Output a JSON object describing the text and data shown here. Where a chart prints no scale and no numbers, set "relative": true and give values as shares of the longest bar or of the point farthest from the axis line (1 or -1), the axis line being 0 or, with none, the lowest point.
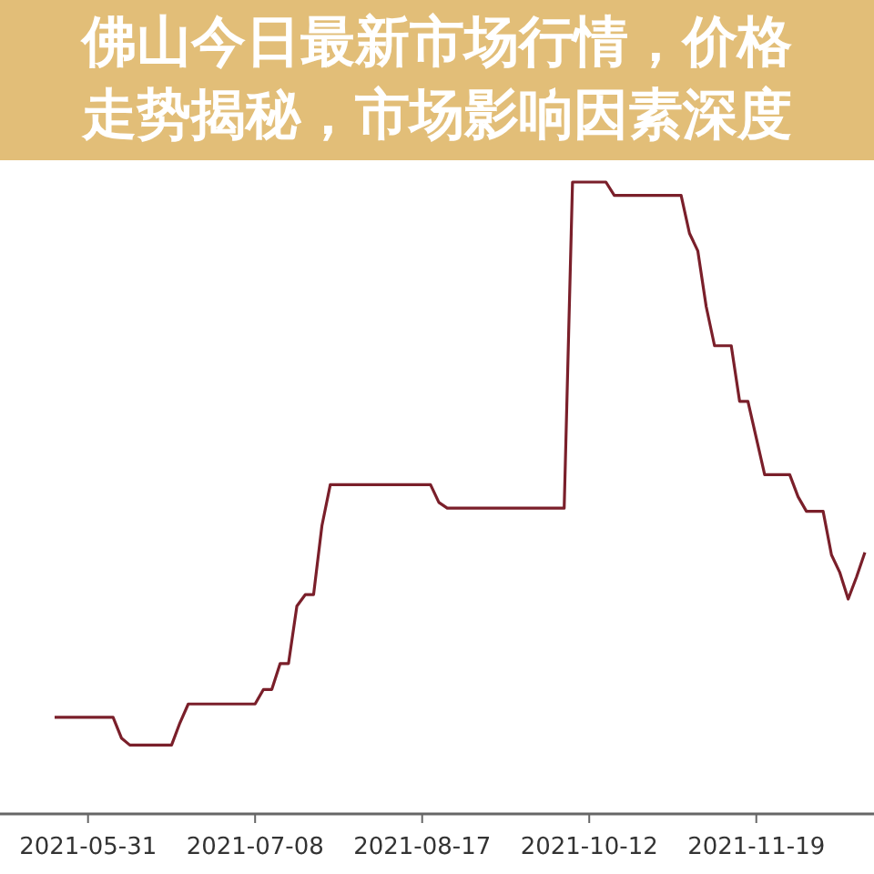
{
  "chart_data": {
    "type": "line",
    "title": "佛山今日最新市场行情，价格走势揭秘，市场影响因素深度",
    "relative": true,
    "marker": "none",
    "line_style": "solid",
    "categories": [
      null,
      null,
      null,
      null,
      "2021-05-31",
      null,
      null,
      null,
      null,
      null,
      null,
      null,
      null,
      null,
      null,
      null,
      null,
      null,
      null,
      null,
      null,
      null,
      null,
      null,
      "2021-07-08",
      null,
      null,
      null,
      null,
      null,
      null,
      null,
      null,
      null,
      null,
      null,
      null,
      null,
      null,
      null,
      null,
      null,
      null,
      null,
      "2021-08-17",
      null,
      null,
      null,
      null,
      null,
      null,
      null,
      null,
      null,
      null,
      null,
      null,
      null,
      null,
      null,
      null,
      null,
      null,
      null,
      "2021-10-12",
      null,
      null,
      null,
      null,
      null,
      null,
      null,
      null,
      null,
      null,
      null,
      null,
      null,
      null,
      null,
      null,
      null,
      null,
      null,
      "2021-11-19",
      null,
      null,
      null,
      null,
      null,
      null,
      null,
      null,
      null,
      null,
      null,
      null,
      null
    ],
    "series": [
      {
        "color": "#7a1f2a",
        "values": [
          0.153,
          0.153,
          0.153,
          0.153,
          0.153,
          0.153,
          0.153,
          0.153,
          0.12,
          0.109,
          0.109,
          0.109,
          0.109,
          0.109,
          0.109,
          0.144,
          0.174,
          0.174,
          0.174,
          0.174,
          0.174,
          0.174,
          0.174,
          0.174,
          0.174,
          0.197,
          0.197,
          0.238,
          0.238,
          0.329,
          0.347,
          0.347,
          0.456,
          0.521,
          0.521,
          0.521,
          0.521,
          0.521,
          0.521,
          0.521,
          0.521,
          0.521,
          0.521,
          0.521,
          0.521,
          0.521,
          0.493,
          0.484,
          0.484,
          0.484,
          0.484,
          0.484,
          0.484,
          0.484,
          0.484,
          0.484,
          0.484,
          0.484,
          0.484,
          0.484,
          0.484,
          0.484,
          1,
          1,
          1,
          1,
          1,
          0.979,
          0.979,
          0.979,
          0.979,
          0.979,
          0.979,
          0.979,
          0.979,
          0.979,
          0.919,
          0.891,
          0.803,
          0.741,
          0.741,
          0.741,
          0.653,
          0.653,
          0.595,
          0.537,
          0.537,
          0.537,
          0.537,
          0.502,
          0.479,
          0.479,
          0.479,
          0.41,
          0.382,
          0.34,
          0.375,
          0.414
        ]
      }
    ]
  }
}
